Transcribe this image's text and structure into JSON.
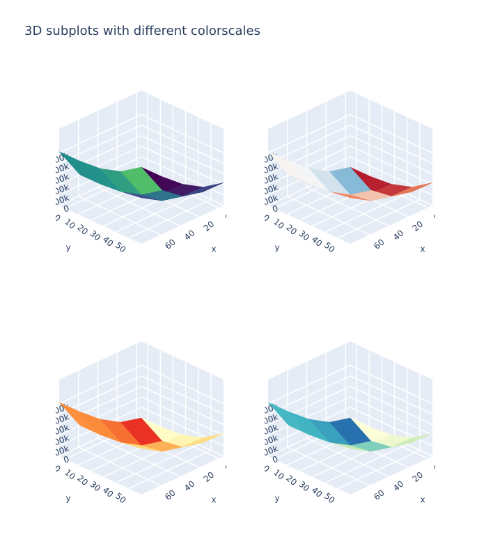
{
  "title": "3D subplots with different colorscales",
  "chart_data": [
    {
      "type": "surface",
      "colorscale": [
        "#440154",
        "#3b528b",
        "#21918c",
        "#5ec962",
        "#fde725"
      ],
      "x": [
        -5,
        16.25,
        37.5,
        58.75,
        80
      ],
      "y": [
        -5,
        11.25,
        27.5,
        43.75,
        60
      ],
      "z": [
        [
          -250,
          1299,
          20672,
          83615,
          215875
        ],
        [
          4166,
          5715,
          25088,
          88031,
          220291
        ],
        [
          52609,
          54158,
          73531,
          136474,
          268734
        ],
        [
          202654,
          204203,
          223576,
          286519,
          418779
        ],
        [
          511875,
          513424,
          532797,
          595740,
          728000
        ]
      ],
      "xlim": [
        -5,
        80
      ],
      "ylim": [
        -5,
        60
      ],
      "zlim": [
        -250,
        728000
      ],
      "xticks": [
        0,
        20,
        40,
        60
      ],
      "yticks": [
        0,
        10,
        20,
        30,
        40,
        50
      ],
      "zticks": [
        0,
        {
          "value": 100000,
          "label": "100k"
        },
        {
          "value": 200000,
          "label": "200k"
        },
        {
          "value": 300000,
          "label": "300k"
        },
        {
          "value": 400000,
          "label": "400k"
        },
        {
          "value": 500000,
          "label": "500k"
        }
      ],
      "xlabel": "x",
      "ylabel": "y"
    },
    {
      "type": "surface",
      "colorscale": [
        "#b2182b",
        "#ef8a62",
        "#f7f7f7",
        "#67a9cf",
        "#2166ac"
      ],
      "x": [
        -5,
        16.25,
        37.5,
        58.75,
        80
      ],
      "y": [
        -5,
        11.25,
        27.5,
        43.75,
        60
      ],
      "z": [
        [
          -250,
          1299,
          20672,
          83615,
          215875
        ],
        [
          4166,
          5715,
          25088,
          88031,
          220291
        ],
        [
          52609,
          54158,
          73531,
          136474,
          268734
        ],
        [
          202654,
          204203,
          223576,
          286519,
          418779
        ],
        [
          511875,
          513424,
          532797,
          595740,
          728000
        ]
      ],
      "xlim": [
        -5,
        80
      ],
      "ylim": [
        -5,
        60
      ],
      "zlim": [
        -250,
        728000
      ],
      "xticks": [
        0,
        20,
        40,
        60
      ],
      "yticks": [
        0,
        10,
        20,
        30,
        40,
        50
      ],
      "zticks": [
        0,
        {
          "value": 100000,
          "label": "100k"
        },
        {
          "value": 200000,
          "label": "200k"
        },
        {
          "value": 300000,
          "label": "300k"
        },
        {
          "value": 400000,
          "label": "400k"
        },
        {
          "value": 500000,
          "label": "500k"
        }
      ],
      "xlabel": "x",
      "ylabel": "y"
    },
    {
      "type": "surface",
      "colorscale": [
        "#ffffcc",
        "#fed976",
        "#fd8d3c",
        "#e31a1c",
        "#800026"
      ],
      "x": [
        -5,
        16.25,
        37.5,
        58.75,
        80
      ],
      "y": [
        -5,
        11.25,
        27.5,
        43.75,
        60
      ],
      "z": [
        [
          -250,
          1299,
          20672,
          83615,
          215875
        ],
        [
          4166,
          5715,
          25088,
          88031,
          220291
        ],
        [
          52609,
          54158,
          73531,
          136474,
          268734
        ],
        [
          202654,
          204203,
          223576,
          286519,
          418779
        ],
        [
          511875,
          513424,
          532797,
          595740,
          728000
        ]
      ],
      "xlim": [
        -5,
        80
      ],
      "ylim": [
        -5,
        60
      ],
      "zlim": [
        -250,
        728000
      ],
      "xticks": [
        0,
        20,
        40,
        60
      ],
      "yticks": [
        0,
        10,
        20,
        30,
        40,
        50
      ],
      "zticks": [
        0,
        {
          "value": 100000,
          "label": "100k"
        },
        {
          "value": 200000,
          "label": "200k"
        },
        {
          "value": 300000,
          "label": "300k"
        },
        {
          "value": 400000,
          "label": "400k"
        },
        {
          "value": 500000,
          "label": "500k"
        }
      ],
      "xlabel": "x",
      "ylabel": "y"
    },
    {
      "type": "surface",
      "colorscale": [
        "#ffffd9",
        "#c7e9b4",
        "#41b6c4",
        "#225ea8",
        "#081d58"
      ],
      "x": [
        -5,
        16.25,
        37.5,
        58.75,
        80
      ],
      "y": [
        -5,
        11.25,
        27.5,
        43.75,
        60
      ],
      "z": [
        [
          -250,
          1299,
          20672,
          83615,
          215875
        ],
        [
          4166,
          5715,
          25088,
          88031,
          220291
        ],
        [
          52609,
          54158,
          73531,
          136474,
          268734
        ],
        [
          202654,
          204203,
          223576,
          286519,
          418779
        ],
        [
          511875,
          513424,
          532797,
          595740,
          728000
        ]
      ],
      "xlim": [
        -5,
        80
      ],
      "ylim": [
        -5,
        60
      ],
      "zlim": [
        -250,
        728000
      ],
      "xticks": [
        0,
        20,
        40,
        60
      ],
      "yticks": [
        0,
        10,
        20,
        30,
        40,
        50
      ],
      "zticks": [
        0,
        {
          "value": 100000,
          "label": "100k"
        },
        {
          "value": 200000,
          "label": "200k"
        },
        {
          "value": 300000,
          "label": "300k"
        },
        {
          "value": 400000,
          "label": "400k"
        },
        {
          "value": 500000,
          "label": "500k"
        }
      ],
      "xlabel": "x",
      "ylabel": "y"
    }
  ]
}
